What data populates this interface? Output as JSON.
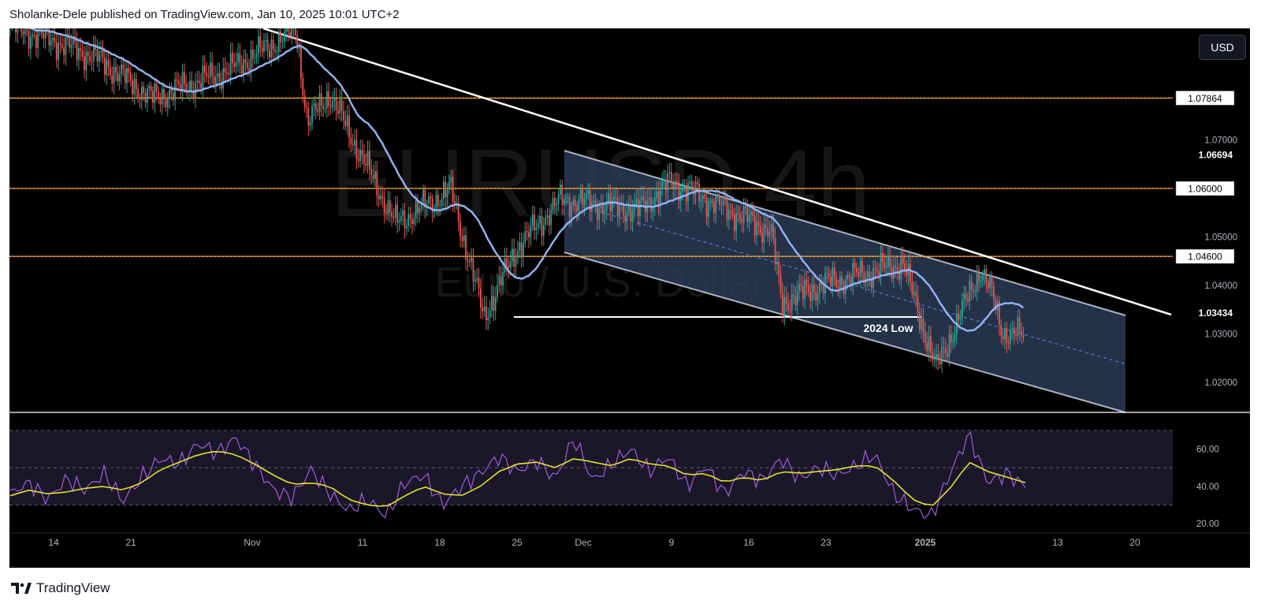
{
  "header": {
    "attribution": "Sholanke-Dele published on TradingView.com, Jan 10, 2025 10:01 UTC+2"
  },
  "watermark": {
    "symbol": "EURUSD",
    "interval": "4h",
    "description": "Euro / U.S. Dollar"
  },
  "currency_button": "USD",
  "footer": {
    "brand": "TradingView"
  },
  "colors": {
    "background": "#000000",
    "candle_up": "#26a69a",
    "candle_down": "#ef5350",
    "moving_average": "#8fb2f0",
    "support_resistance": "#ff9800",
    "trendline": "#ffffff",
    "channel_fill": "#2a3b55",
    "rsi": "#a05cde",
    "rsi_ma": "#e3e32a"
  },
  "chart_data": [
    {
      "type": "candlestick",
      "title": "EURUSD 4h",
      "ylim": [
        1.014,
        1.093
      ],
      "price_scale_labels": [
        "1.07000",
        "1.05000",
        "1.04000",
        "1.03000",
        "1.02000"
      ],
      "highlighted_levels": [
        {
          "label": "1.07864",
          "value": 1.07864
        },
        {
          "label": "1.06000",
          "value": 1.06
        },
        {
          "label": "1.04600",
          "value": 1.046
        }
      ],
      "price_markers": [
        {
          "label": "1.06694",
          "value": 1.06694
        },
        {
          "label": "1.03434",
          "value": 1.03434
        }
      ],
      "x_tick_labels": [
        "14",
        "21",
        "Nov",
        "11",
        "18",
        "25",
        "Dec",
        "9",
        "16",
        "23",
        "2025",
        "13",
        "20"
      ],
      "annotations": [
        {
          "text": "2024 Low",
          "value": 1.0335
        }
      ],
      "price_path_keypoints": [
        {
          "date": "2024-10-10",
          "close": 1.0935
        },
        {
          "date": "2024-10-14",
          "close": 1.0905
        },
        {
          "date": "2024-10-18",
          "close": 1.0868
        },
        {
          "date": "2024-10-23",
          "close": 1.0786
        },
        {
          "date": "2024-10-30",
          "close": 1.0845
        },
        {
          "date": "2024-11-05",
          "close": 1.0928
        },
        {
          "date": "2024-11-06",
          "close": 1.0735
        },
        {
          "date": "2024-11-08",
          "close": 1.0795
        },
        {
          "date": "2024-11-14",
          "close": 1.0528
        },
        {
          "date": "2024-11-19",
          "close": 1.0598
        },
        {
          "date": "2024-11-22",
          "close": 1.0335
        },
        {
          "date": "2024-11-25",
          "close": 1.0478
        },
        {
          "date": "2024-11-29",
          "close": 1.0578
        },
        {
          "date": "2024-12-06",
          "close": 1.0555
        },
        {
          "date": "2024-12-09",
          "close": 1.0615
        },
        {
          "date": "2024-12-18",
          "close": 1.0512
        },
        {
          "date": "2024-12-19",
          "close": 1.0365
        },
        {
          "date": "2024-12-23",
          "close": 1.0405
        },
        {
          "date": "2024-12-30",
          "close": 1.0445
        },
        {
          "date": "2025-01-02",
          "close": 1.0228
        },
        {
          "date": "2025-01-06",
          "close": 1.0435
        },
        {
          "date": "2025-01-07",
          "close": 1.0385
        },
        {
          "date": "2025-01-08",
          "close": 1.0305
        },
        {
          "date": "2025-01-10",
          "close": 1.0295
        }
      ]
    },
    {
      "type": "line",
      "title": "RSI",
      "ylim": [
        15,
        75
      ],
      "y_tick_labels": [
        "60.00",
        "40.00",
        "20.00"
      ],
      "bands": [
        70,
        50,
        30
      ],
      "series": [
        {
          "values": [
            36,
            42,
            33,
            44,
            38,
            47,
            32,
            45,
            55,
            52,
            63,
            58,
            66,
            52,
            38,
            34,
            49,
            36,
            27,
            33,
            24,
            42,
            46,
            30,
            40,
            47,
            56,
            48,
            54,
            44,
            66,
            43,
            52,
            60,
            48,
            56,
            40,
            51,
            36,
            48,
            43,
            55,
            44,
            50,
            46,
            51,
            57,
            36,
            28,
            24,
            47,
            68,
            42,
            47,
            40
          ]
        },
        {
          "values": [
            35,
            38,
            36,
            37,
            39,
            40,
            38,
            42,
            49,
            53,
            57,
            59,
            57,
            52,
            46,
            41,
            42,
            40,
            33,
            30,
            29,
            35,
            40,
            36,
            35,
            40,
            48,
            52,
            53,
            50,
            55,
            53,
            51,
            55,
            52,
            51,
            46,
            47,
            42,
            45,
            43,
            48,
            47,
            48,
            49,
            51,
            51,
            43,
            33,
            29,
            39,
            53,
            48,
            45,
            42
          ]
        }
      ]
    }
  ]
}
